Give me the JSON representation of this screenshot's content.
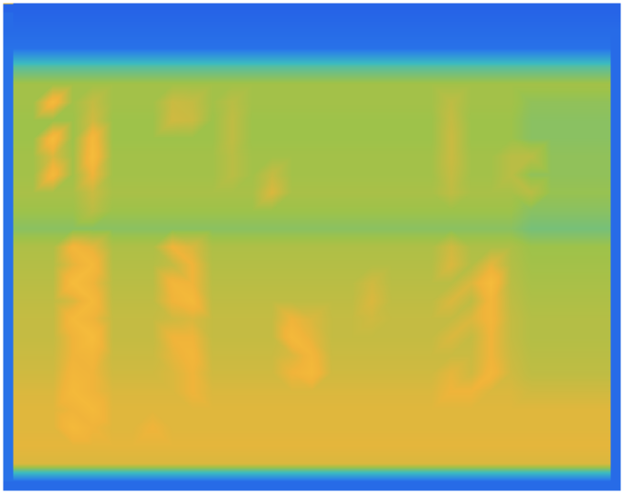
{
  "chart_data": {
    "type": "heatmap",
    "tick_labels": false,
    "color_range": [
      0,
      100
    ],
    "cells": [
      [
        12,
        12,
        12,
        12,
        12,
        12,
        12,
        12,
        12,
        12,
        12,
        12,
        12,
        12,
        12,
        12,
        12,
        12,
        12,
        12,
        12,
        12,
        12,
        12,
        12,
        12,
        12,
        12,
        12,
        12,
        12
      ],
      [
        14,
        14,
        14,
        14,
        14,
        14,
        14,
        14,
        14,
        14,
        14,
        14,
        14,
        14,
        14,
        14,
        14,
        14,
        14,
        14,
        14,
        14,
        14,
        14,
        14,
        14,
        14,
        14,
        14,
        14,
        14
      ],
      [
        16,
        16,
        16,
        16,
        16,
        16,
        16,
        16,
        16,
        16,
        16,
        16,
        16,
        16,
        16,
        16,
        16,
        16,
        16,
        16,
        16,
        16,
        16,
        16,
        16,
        16,
        16,
        16,
        16,
        16,
        16
      ],
      [
        44,
        44,
        44,
        44,
        44,
        44,
        44,
        44,
        44,
        44,
        44,
        44,
        44,
        44,
        44,
        44,
        44,
        44,
        44,
        44,
        44,
        44,
        44,
        44,
        44,
        44,
        44,
        44,
        44,
        44,
        44
      ],
      [
        56,
        56,
        56,
        56,
        56,
        56,
        56,
        56,
        56,
        56,
        56,
        56,
        56,
        56,
        56,
        56,
        56,
        56,
        56,
        56,
        56,
        56,
        56,
        56,
        56,
        56,
        56,
        56,
        56,
        56,
        56
      ],
      [
        56,
        56,
        75,
        56,
        62,
        56,
        56,
        56,
        63,
        62,
        56,
        60,
        56,
        56,
        56,
        56,
        56,
        56,
        56,
        56,
        56,
        56,
        61,
        56,
        56,
        56,
        53,
        53,
        53,
        53,
        53
      ],
      [
        55,
        55,
        55,
        55,
        64,
        55,
        55,
        55,
        64,
        63,
        55,
        61,
        55,
        55,
        55,
        55,
        55,
        55,
        55,
        55,
        55,
        55,
        62,
        55,
        55,
        55,
        52,
        52,
        52,
        52,
        52
      ],
      [
        55,
        55,
        76,
        55,
        74,
        55,
        55,
        55,
        55,
        55,
        55,
        61,
        55,
        55,
        55,
        55,
        55,
        55,
        55,
        55,
        55,
        55,
        63,
        55,
        55,
        55,
        52,
        52,
        52,
        52,
        52
      ],
      [
        56,
        56,
        66,
        56,
        76,
        56,
        56,
        56,
        56,
        56,
        56,
        60,
        56,
        56,
        56,
        56,
        56,
        56,
        56,
        56,
        56,
        56,
        63,
        56,
        56,
        60,
        60,
        53,
        53,
        53,
        53
      ],
      [
        56,
        56,
        74,
        56,
        70,
        56,
        56,
        56,
        56,
        56,
        56,
        60,
        56,
        62,
        56,
        56,
        56,
        56,
        56,
        56,
        56,
        56,
        62,
        56,
        56,
        60,
        53,
        53,
        53,
        53,
        53
      ],
      [
        57,
        57,
        57,
        57,
        63,
        57,
        57,
        57,
        57,
        57,
        57,
        57,
        57,
        66,
        57,
        57,
        57,
        57,
        57,
        57,
        57,
        57,
        61,
        57,
        57,
        57,
        60,
        54,
        54,
        54,
        54
      ],
      [
        55,
        55,
        55,
        55,
        60,
        55,
        55,
        55,
        55,
        55,
        55,
        55,
        55,
        55,
        55,
        55,
        55,
        55,
        55,
        55,
        55,
        55,
        55,
        55,
        55,
        55,
        52,
        52,
        52,
        52,
        52
      ],
      [
        52,
        52,
        52,
        52,
        52,
        52,
        52,
        52,
        52,
        52,
        52,
        52,
        52,
        52,
        52,
        52,
        52,
        52,
        52,
        52,
        52,
        52,
        52,
        52,
        52,
        52,
        49,
        49,
        49,
        49,
        49
      ],
      [
        58,
        58,
        58,
        72,
        68,
        58,
        58,
        58,
        70,
        66,
        58,
        58,
        58,
        58,
        58,
        58,
        58,
        58,
        58,
        58,
        58,
        58,
        64,
        58,
        58,
        58,
        55,
        55,
        55,
        55,
        55
      ],
      [
        59,
        59,
        59,
        68,
        74,
        59,
        59,
        59,
        62,
        70,
        59,
        59,
        59,
        59,
        59,
        59,
        59,
        59,
        59,
        59,
        59,
        59,
        66,
        59,
        68,
        59,
        56,
        56,
        56,
        56,
        56
      ],
      [
        60,
        60,
        60,
        76,
        70,
        60,
        60,
        60,
        72,
        70,
        60,
        60,
        60,
        60,
        60,
        60,
        60,
        60,
        64,
        60,
        60,
        60,
        60,
        66,
        76,
        60,
        57,
        57,
        57,
        57,
        57
      ],
      [
        61,
        61,
        61,
        66,
        74,
        61,
        61,
        61,
        70,
        74,
        61,
        61,
        61,
        61,
        61,
        61,
        61,
        61,
        66,
        61,
        61,
        61,
        66,
        61,
        72,
        61,
        58,
        58,
        58,
        58,
        58
      ],
      [
        62,
        62,
        62,
        74,
        70,
        62,
        62,
        62,
        64,
        66,
        62,
        62,
        62,
        62,
        70,
        66,
        62,
        62,
        64,
        62,
        62,
        62,
        62,
        66,
        72,
        62,
        59,
        59,
        59,
        59,
        59
      ],
      [
        62,
        62,
        62,
        70,
        76,
        62,
        62,
        62,
        70,
        70,
        62,
        62,
        62,
        62,
        74,
        68,
        62,
        62,
        62,
        62,
        62,
        62,
        66,
        62,
        70,
        62,
        59,
        59,
        59,
        59,
        59
      ],
      [
        63,
        63,
        63,
        70,
        72,
        63,
        63,
        63,
        68,
        72,
        63,
        63,
        63,
        63,
        66,
        72,
        63,
        63,
        63,
        63,
        63,
        63,
        63,
        63,
        70,
        63,
        60,
        60,
        60,
        60,
        60
      ],
      [
        64,
        64,
        64,
        72,
        70,
        64,
        64,
        64,
        66,
        70,
        64,
        64,
        64,
        64,
        70,
        74,
        64,
        64,
        64,
        64,
        64,
        64,
        68,
        64,
        72,
        64,
        61,
        61,
        61,
        61,
        61
      ],
      [
        66,
        66,
        66,
        74,
        70,
        66,
        66,
        66,
        66,
        70,
        66,
        66,
        66,
        66,
        66,
        66,
        66,
        66,
        66,
        66,
        66,
        66,
        70,
        70,
        66,
        66,
        64,
        64,
        64,
        64,
        64
      ],
      [
        67,
        67,
        67,
        70,
        74,
        67,
        67,
        67,
        67,
        67,
        67,
        67,
        67,
        67,
        67,
        67,
        67,
        67,
        67,
        67,
        67,
        67,
        67,
        67,
        67,
        67,
        67,
        67,
        67,
        67,
        67
      ],
      [
        67,
        67,
        67,
        74,
        70,
        67,
        67,
        70,
        67,
        67,
        67,
        67,
        67,
        67,
        67,
        67,
        67,
        67,
        67,
        67,
        67,
        67,
        67,
        67,
        67,
        67,
        67,
        67,
        67,
        67,
        67
      ],
      [
        68,
        68,
        68,
        68,
        68,
        68,
        68,
        68,
        68,
        68,
        68,
        68,
        68,
        68,
        68,
        68,
        68,
        68,
        68,
        68,
        68,
        68,
        68,
        68,
        68,
        68,
        68,
        68,
        68,
        68,
        68
      ],
      [
        66,
        66,
        66,
        66,
        66,
        66,
        66,
        66,
        66,
        66,
        66,
        66,
        66,
        66,
        66,
        66,
        66,
        66,
        66,
        66,
        66,
        66,
        66,
        66,
        66,
        66,
        66,
        66,
        66,
        66,
        66
      ],
      [
        14,
        14,
        14,
        14,
        14,
        14,
        14,
        14,
        14,
        14,
        14,
        14,
        14,
        14,
        14,
        14,
        14,
        14,
        14,
        14,
        14,
        14,
        14,
        14,
        14,
        14,
        14,
        14,
        14,
        14,
        14
      ]
    ]
  }
}
